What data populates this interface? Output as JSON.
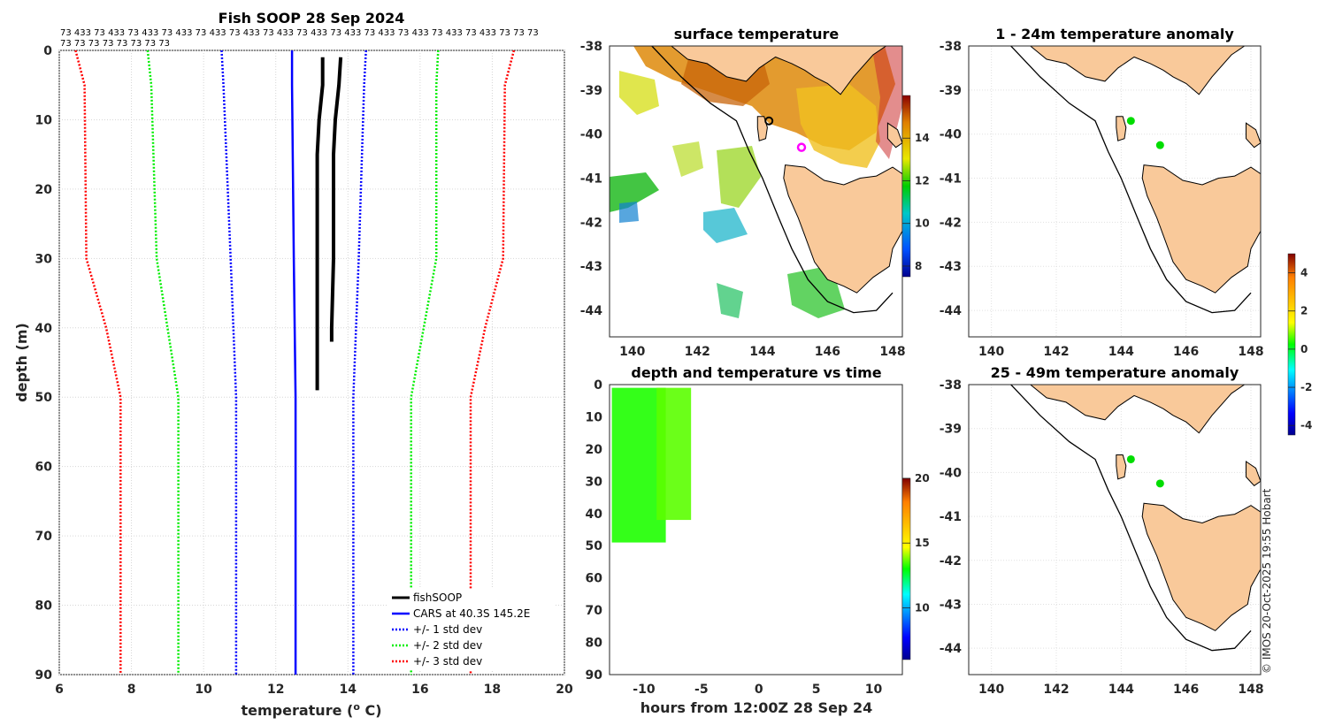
{
  "colors": {
    "land": "#f9c99a",
    "cars": "#0000ff",
    "std1": "#0000ff",
    "std2": "#00ee00",
    "std3": "#ff0000",
    "fish": "#000000",
    "cast_dot": "#00dd00",
    "marker": "#ff00ff"
  },
  "chart_data": [
    {
      "type": "line",
      "title": "Fish SOOP 28 Sep 2024",
      "xlabel": "temperature (",
      "xlabel_unit_sup": "o",
      "xlabel_tail": " C)",
      "ylabel": "depth (m)",
      "xlim": [
        6,
        20
      ],
      "ylim": [
        0,
        90
      ],
      "xticks": [
        "6",
        "8",
        "10",
        "12",
        "14",
        "16",
        "18",
        "20"
      ],
      "yticks": [
        "0",
        "10",
        "20",
        "30",
        "40",
        "50",
        "60",
        "70",
        "80",
        "90"
      ],
      "id_line1": "73 433 73 433 73 433 73 433 73 433 73 433 73 433 73 433 73 433 73 433 73 433 73 433 73 433 73 73 73",
      "id_line2": "73 73 73 73 73 73 73 73",
      "legend": [
        "fishSOOP",
        "CARS at 40.3S 145.2E",
        "+/- 1 std dev",
        "+/- 2 std dev",
        "+/- 3 std dev"
      ],
      "series": [
        {
          "name": "CARS at 40.3S 145.2E",
          "depth": [
            0,
            5,
            30,
            50,
            90
          ],
          "values": [
            12.45,
            12.45,
            12.5,
            12.55,
            12.55
          ]
        },
        {
          "name": "-1 std dev",
          "depth": [
            0,
            5,
            30,
            50,
            90
          ],
          "values": [
            10.5,
            10.55,
            10.75,
            10.9,
            10.9
          ]
        },
        {
          "name": "+1 std dev",
          "depth": [
            0,
            5,
            30,
            50,
            90
          ],
          "values": [
            14.5,
            14.45,
            14.3,
            14.15,
            14.15
          ]
        },
        {
          "name": "-2 std dev",
          "depth": [
            0,
            5,
            30,
            50,
            90
          ],
          "values": [
            8.45,
            8.55,
            8.7,
            9.3,
            9.3
          ]
        },
        {
          "name": "+2 std dev",
          "depth": [
            0,
            5,
            30,
            50,
            90
          ],
          "values": [
            16.5,
            16.45,
            16.45,
            15.75,
            15.75
          ]
        },
        {
          "name": "-3 std dev",
          "depth": [
            0,
            5,
            30,
            40,
            50,
            90
          ],
          "values": [
            6.45,
            6.7,
            6.75,
            7.3,
            7.7,
            7.7
          ]
        },
        {
          "name": "+3 std dev",
          "depth": [
            0,
            5,
            30,
            40,
            50,
            90
          ],
          "values": [
            18.6,
            18.35,
            18.3,
            17.8,
            17.4,
            17.4
          ]
        },
        {
          "name": "fishSOOP A",
          "depth": [
            1,
            5,
            10,
            15,
            20,
            30,
            40,
            49
          ],
          "values": [
            13.3,
            13.3,
            13.2,
            13.15,
            13.15,
            13.15,
            13.15,
            13.15
          ]
        },
        {
          "name": "fishSOOP B",
          "depth": [
            1,
            5,
            10,
            15,
            20,
            30,
            40,
            42
          ],
          "values": [
            13.8,
            13.75,
            13.65,
            13.6,
            13.6,
            13.6,
            13.55,
            13.55
          ]
        }
      ]
    },
    {
      "type": "heatmap",
      "title": "surface temperature",
      "xlim": [
        139.3,
        148.3
      ],
      "ylim": [
        -44.6,
        -38
      ],
      "xticks": [
        "140",
        "142",
        "144",
        "146",
        "148"
      ],
      "yticks": [
        "-38",
        "-39",
        "-40",
        "-41",
        "-42",
        "-43",
        "-44"
      ],
      "colorbar_ticks": [
        "8",
        "10",
        "12",
        "14"
      ],
      "colorbar_range": [
        7.5,
        16
      ],
      "cast_location": {
        "lon": 144.2,
        "lat": -39.7
      },
      "cars_location": {
        "lon": 145.2,
        "lat": -40.3
      }
    },
    {
      "type": "scatter",
      "title": "depth and temperature vs time",
      "xlabel": "hours from 12:00Z 28 Sep 24",
      "xlim": [
        -13,
        12.5
      ],
      "ylim": [
        0,
        90
      ],
      "xticks": [
        "-10",
        "-5",
        "0",
        "5",
        "10"
      ],
      "yticks": [
        "0",
        "10",
        "20",
        "30",
        "40",
        "50",
        "60",
        "70",
        "80",
        "90"
      ],
      "colorbar_ticks": [
        "10",
        "15",
        "20"
      ],
      "colorbar_range": [
        6,
        20
      ],
      "casts": [
        {
          "t_start": -12.8,
          "t_end": -8.1,
          "max_depth": 49,
          "temp": 13.2
        },
        {
          "t_start": -8.9,
          "t_end": -5.9,
          "max_depth": 42,
          "temp": 13.6
        }
      ]
    },
    {
      "type": "scatter",
      "title": "1 - 24m temperature anomaly",
      "xlim": [
        139.3,
        148.3
      ],
      "ylim": [
        -44.6,
        -38
      ],
      "xticks": [
        "140",
        "142",
        "144",
        "146",
        "148"
      ],
      "yticks": [
        "-38",
        "-39",
        "-40",
        "-41",
        "-42",
        "-43",
        "-44"
      ],
      "points": [
        {
          "lon": 144.3,
          "lat": -39.7,
          "anomaly": 0.3
        },
        {
          "lon": 145.2,
          "lat": -40.25,
          "anomaly": 0.3
        }
      ]
    },
    {
      "type": "scatter",
      "title": "25 - 49m temperature anomaly",
      "xlim": [
        139.3,
        148.3
      ],
      "ylim": [
        -44.6,
        -38
      ],
      "xticks": [
        "140",
        "142",
        "144",
        "146",
        "148"
      ],
      "yticks": [
        "-38",
        "-39",
        "-40",
        "-41",
        "-42",
        "-43",
        "-44"
      ],
      "anomaly_colorbar_ticks": [
        "4",
        "2",
        "0",
        "-2",
        "-4"
      ],
      "anomaly_range": [
        -4.5,
        5
      ],
      "points": [
        {
          "lon": 144.3,
          "lat": -39.7,
          "anomaly": 0.3
        },
        {
          "lon": 145.2,
          "lat": -40.25,
          "anomaly": 0.3
        }
      ]
    }
  ],
  "credit": "© IMOS 20-Oct-2025 19:55 Hobart"
}
